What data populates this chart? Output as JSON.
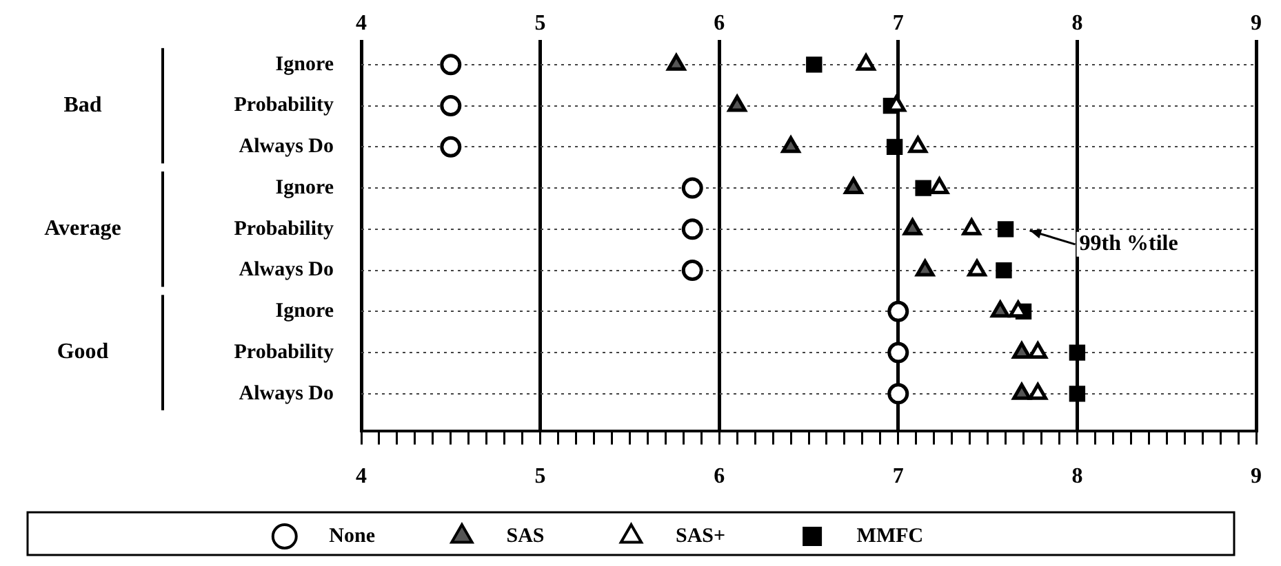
{
  "chart_data": {
    "type": "scatter",
    "orientation": "horizontal",
    "categories": [
      "Ignore",
      "Probability",
      "Always Do",
      "Ignore",
      "Probability",
      "Always Do",
      "Ignore",
      "Probability",
      "Always Do"
    ],
    "series": [
      {
        "name": "None",
        "color": "#ffffff",
        "marker": "circle",
        "values": [
          4.5,
          4.5,
          4.5,
          5.85,
          5.85,
          5.85,
          7.0,
          7.0,
          7.0
        ]
      },
      {
        "name": "SAS",
        "color": "#555555",
        "marker": "triangle",
        "values": [
          5.76,
          6.1,
          6.4,
          6.75,
          7.08,
          7.15,
          7.57,
          7.69,
          7.69
        ]
      },
      {
        "name": "SAS+",
        "color": "#ffffff",
        "marker": "triangle",
        "values": [
          6.82,
          6.99,
          7.11,
          7.23,
          7.41,
          7.44,
          7.67,
          7.78,
          7.78
        ]
      },
      {
        "name": "MMFC",
        "color": "#000000",
        "marker": "square",
        "values": [
          6.53,
          6.96,
          6.98,
          7.14,
          7.6,
          7.59,
          7.7,
          8.0,
          8.0
        ]
      }
    ],
    "xlim": [
      4,
      9
    ],
    "xticks": [
      4,
      {
        "value": 4.1,
        "label": null
      },
      {
        "value": 4.2,
        "label": null
      },
      {
        "value": 4.3,
        "label": null
      },
      {
        "value": 4.4,
        "label": null
      },
      {
        "value": 4.5,
        "label": null
      },
      {
        "value": 4.6,
        "label": null
      },
      {
        "value": 4.7,
        "label": null
      },
      {
        "value": 4.8,
        "label": null
      },
      {
        "value": 4.9,
        "label": null
      },
      5,
      {
        "value": 5.1,
        "label": null
      },
      {
        "value": 5.2,
        "label": null
      },
      {
        "value": 5.3,
        "label": null
      },
      {
        "value": 5.4,
        "label": null
      },
      {
        "value": 5.5,
        "label": null
      },
      {
        "value": 5.6,
        "label": null
      },
      {
        "value": 5.7,
        "label": null
      },
      {
        "value": 5.8,
        "label": null
      },
      {
        "value": 5.9,
        "label": null
      },
      6,
      {
        "value": 6.1,
        "label": null
      },
      {
        "value": 6.2,
        "label": null
      },
      {
        "value": 6.3,
        "label": null
      },
      {
        "value": 6.4,
        "label": null
      },
      {
        "value": 6.5,
        "label": null
      },
      {
        "value": 6.6,
        "label": null
      },
      {
        "value": 6.7,
        "label": null
      },
      {
        "value": 6.8,
        "label": null
      },
      {
        "value": 6.9,
        "label": null
      },
      7,
      {
        "value": 7.1,
        "label": null
      },
      {
        "value": 7.2,
        "label": null
      },
      {
        "value": 7.3,
        "label": null
      },
      {
        "value": 7.4,
        "label": null
      },
      {
        "value": 7.5,
        "label": null
      },
      {
        "value": 7.6,
        "label": null
      },
      {
        "value": 7.7,
        "label": null
      },
      {
        "value": 7.8,
        "label": null
      },
      {
        "value": 7.9,
        "label": null
      },
      8,
      {
        "value": 8.1,
        "label": null
      },
      {
        "value": 8.2,
        "label": null
      },
      {
        "value": 8.3,
        "label": null
      },
      {
        "value": 8.4,
        "label": null
      },
      {
        "value": 8.5,
        "label": null
      },
      {
        "value": 8.6,
        "label": null
      },
      {
        "value": 8.7,
        "label": null
      },
      {
        "value": 8.8,
        "label": null
      },
      {
        "value": 8.9,
        "label": null
      },
      9
    ],
    "x2lim": [
      4,
      9
    ],
    "x2ticks": [
      4,
      5,
      6,
      7,
      8,
      9
    ],
    "annotations": [
      "Bad",
      "Average",
      "Good",
      "99th %tile"
    ],
    "grid": true,
    "legend": "bottom"
  }
}
